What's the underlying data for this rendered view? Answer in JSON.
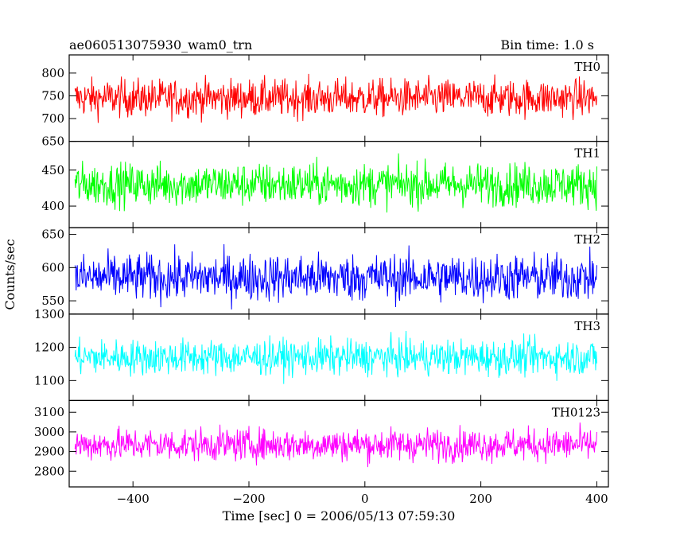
{
  "header": {
    "left": "ae060513075930_wam0_trn",
    "right": "Bin time: 1.0 s"
  },
  "chart_data": {
    "type": "line",
    "title": "ae060513075930_wam0_trn",
    "subtitle": "Bin time: 1.0 s",
    "xlabel": "Time [sec] 0 = 2006/05/13 07:59:30",
    "ylabel": "Counts/sec",
    "xlim": [
      -510,
      420
    ],
    "x_ticks": [
      -400,
      -200,
      0,
      200,
      400
    ],
    "x_range": [
      -500,
      400
    ],
    "x_step": 1,
    "panels": [
      {
        "name": "TH0",
        "color": "#ff0000",
        "ylim": [
          650,
          840
        ],
        "y_ticks": [
          650,
          700,
          750,
          800
        ],
        "mean": 745,
        "spread": 35
      },
      {
        "name": "TH1",
        "color": "#00ff00",
        "ylim": [
          370,
          490
        ],
        "y_ticks": [
          400,
          450
        ],
        "mean": 430,
        "spread": 25
      },
      {
        "name": "TH2",
        "color": "#0000ff",
        "ylim": [
          530,
          660
        ],
        "y_ticks": [
          550,
          600,
          650
        ],
        "mean": 585,
        "spread": 30
      },
      {
        "name": "TH3",
        "color": "#00ffff",
        "ylim": [
          1040,
          1300
        ],
        "y_ticks": [
          1100,
          1200,
          1300
        ],
        "mean": 1170,
        "spread": 45
      },
      {
        "name": "TH0123",
        "color": "#ff00ff",
        "ylim": [
          2720,
          3160
        ],
        "y_ticks": [
          2800,
          2900,
          3000,
          3100
        ],
        "mean": 2935,
        "spread": 70
      }
    ]
  }
}
